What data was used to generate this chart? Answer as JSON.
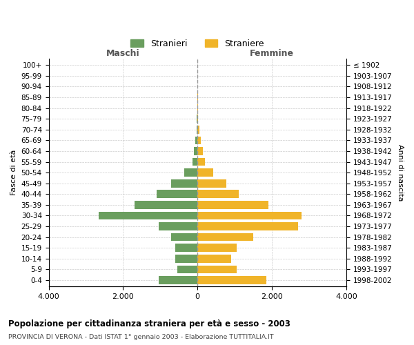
{
  "age_groups": [
    "100+",
    "95-99",
    "90-94",
    "85-89",
    "80-84",
    "75-79",
    "70-74",
    "65-69",
    "60-64",
    "55-59",
    "50-54",
    "45-49",
    "40-44",
    "35-39",
    "30-34",
    "25-29",
    "20-24",
    "15-19",
    "10-14",
    "5-9",
    "0-4"
  ],
  "birth_years": [
    "≤ 1902",
    "1903-1907",
    "1908-1912",
    "1913-1917",
    "1918-1922",
    "1923-1927",
    "1928-1932",
    "1933-1937",
    "1938-1942",
    "1943-1947",
    "1948-1952",
    "1953-1957",
    "1958-1962",
    "1963-1967",
    "1968-1972",
    "1973-1977",
    "1978-1982",
    "1983-1987",
    "1988-1992",
    "1993-1997",
    "1998-2002"
  ],
  "maschi": [
    2,
    2,
    3,
    5,
    8,
    15,
    30,
    55,
    100,
    140,
    350,
    700,
    1100,
    1700,
    2650,
    1050,
    700,
    600,
    600,
    550,
    1050
  ],
  "femmine": [
    3,
    3,
    5,
    8,
    12,
    20,
    50,
    90,
    150,
    200,
    420,
    780,
    1100,
    1900,
    2800,
    2700,
    1500,
    1050,
    900,
    1050,
    1850
  ],
  "maschi_color": "#6a9e5e",
  "femmine_color": "#f0b429",
  "title": "Popolazione per cittadinanza straniera per età e sesso - 2003",
  "subtitle": "PROVINCIA DI VERONA - Dati ISTAT 1° gennaio 2003 - Elaborazione TUTTITALIA.IT",
  "xlabel_left": "Maschi",
  "xlabel_right": "Femmine",
  "ylabel_left": "Fasce di età",
  "ylabel_right": "Anni di nascita",
  "xlim": 4000,
  "xticklabels": [
    "4.000",
    "2.000",
    "0",
    "2.000",
    "4.000"
  ],
  "legend_stranieri": "Stranieri",
  "legend_straniere": "Straniere",
  "background_color": "#ffffff",
  "grid_color": "#cccccc"
}
